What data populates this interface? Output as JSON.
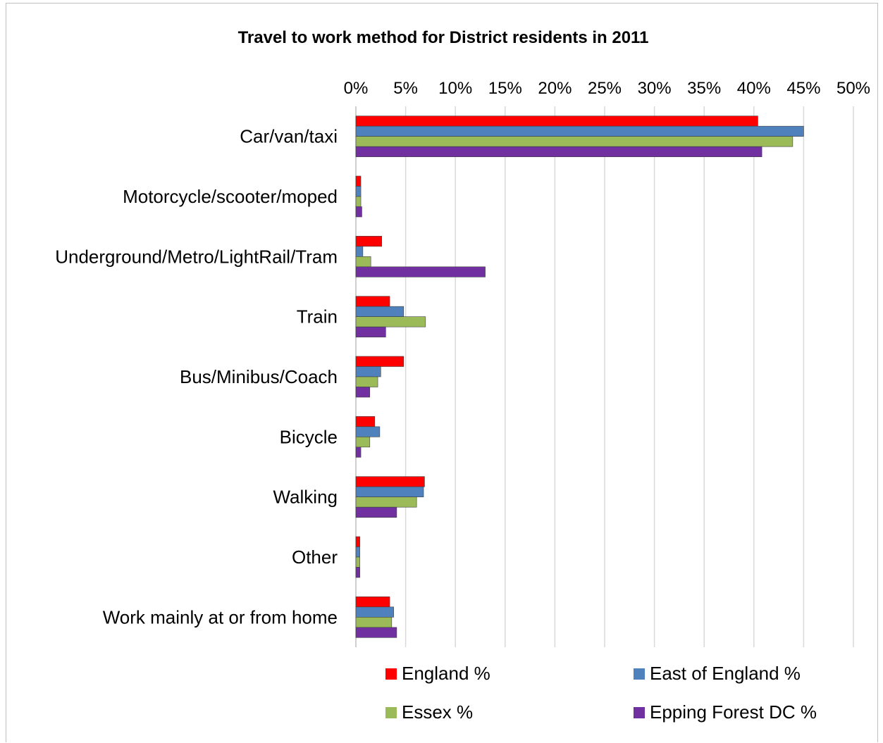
{
  "chart_data": {
    "type": "bar",
    "orientation": "horizontal",
    "title": "Travel to work method for District residents in 2011",
    "xlabel": "",
    "ylabel": "",
    "xlim": [
      0,
      50
    ],
    "x_ticks": [
      "0%",
      "5%",
      "10%",
      "15%",
      "20%",
      "25%",
      "30%",
      "35%",
      "40%",
      "45%",
      "50%"
    ],
    "x_axis_position": "top",
    "grid": true,
    "legend_position": "bottom",
    "categories": [
      "Car/van/taxi",
      "Motorcycle/scooter/moped",
      "Underground/Metro/LightRail/Tram",
      "Train",
      "Bus/Minibus/Coach",
      "Bicycle",
      "Walking",
      "Other",
      "Work mainly at or from home"
    ],
    "series": [
      {
        "name": "England %",
        "color": "#ff0000",
        "values": [
          40.4,
          0.5,
          2.6,
          3.4,
          4.8,
          1.9,
          6.9,
          0.4,
          3.4
        ]
      },
      {
        "name": "East of England %",
        "color": "#4f81bd",
        "values": [
          45.0,
          0.5,
          0.7,
          4.8,
          2.5,
          2.4,
          6.8,
          0.4,
          3.8
        ]
      },
      {
        "name": "Essex %",
        "color": "#9bbb59",
        "values": [
          43.9,
          0.5,
          1.5,
          7.0,
          2.2,
          1.4,
          6.1,
          0.4,
          3.6
        ]
      },
      {
        "name": "Epping Forest DC %",
        "color": "#7030a0",
        "values": [
          40.8,
          0.6,
          13.0,
          3.0,
          1.4,
          0.5,
          4.1,
          0.4,
          4.1
        ]
      }
    ]
  }
}
